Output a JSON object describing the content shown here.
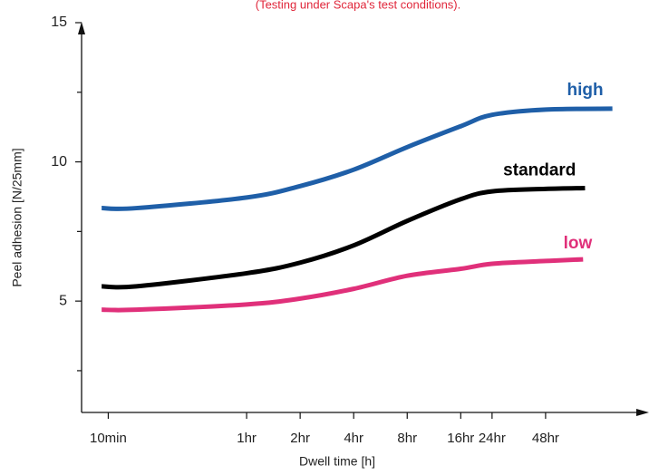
{
  "chart_data": {
    "type": "line",
    "title": "(Testing under Scapa's test conditions).",
    "xlabel": "Dwell time [h]",
    "ylabel": "Peel adhesion [N/25mm]",
    "xscale": "log",
    "xlim": [
      0.118,
      181
    ],
    "xticks": [
      {
        "value": 0.1667,
        "label": "10min"
      },
      {
        "value": 1,
        "label": "1hr"
      },
      {
        "value": 2,
        "label": "2hr"
      },
      {
        "value": 4,
        "label": "4hr"
      },
      {
        "value": 8,
        "label": "8hr"
      },
      {
        "value": 16,
        "label": "16hr"
      },
      {
        "value": 24,
        "label": "24hr"
      },
      {
        "value": 48,
        "label": "48hr"
      }
    ],
    "ylim": [
      1,
      15
    ],
    "yticks": [
      5,
      10,
      15
    ],
    "minor_yticks": [
      2.5,
      7.5,
      12.5
    ],
    "series": [
      {
        "name": "high",
        "color": "#1f5fa8",
        "x": [
          0.153,
          0.24,
          1,
          2,
          4,
          8,
          16,
          24,
          48,
          114
        ],
        "values": [
          8.34,
          8.34,
          8.72,
          9.13,
          9.72,
          10.53,
          11.28,
          11.69,
          11.88,
          11.91
        ]
      },
      {
        "name": "standard",
        "color": "#000000",
        "x": [
          0.153,
          0.24,
          1,
          2,
          4,
          8,
          16,
          24,
          48,
          80
        ],
        "values": [
          5.53,
          5.53,
          6.0,
          6.38,
          7.0,
          7.88,
          8.66,
          8.94,
          9.03,
          9.06
        ]
      },
      {
        "name": "low",
        "color": "#e0307a",
        "x": [
          0.153,
          0.24,
          1,
          2,
          4,
          8,
          16,
          24,
          48,
          78
        ],
        "values": [
          4.69,
          4.69,
          4.88,
          5.09,
          5.44,
          5.91,
          6.16,
          6.34,
          6.44,
          6.5
        ]
      }
    ]
  }
}
